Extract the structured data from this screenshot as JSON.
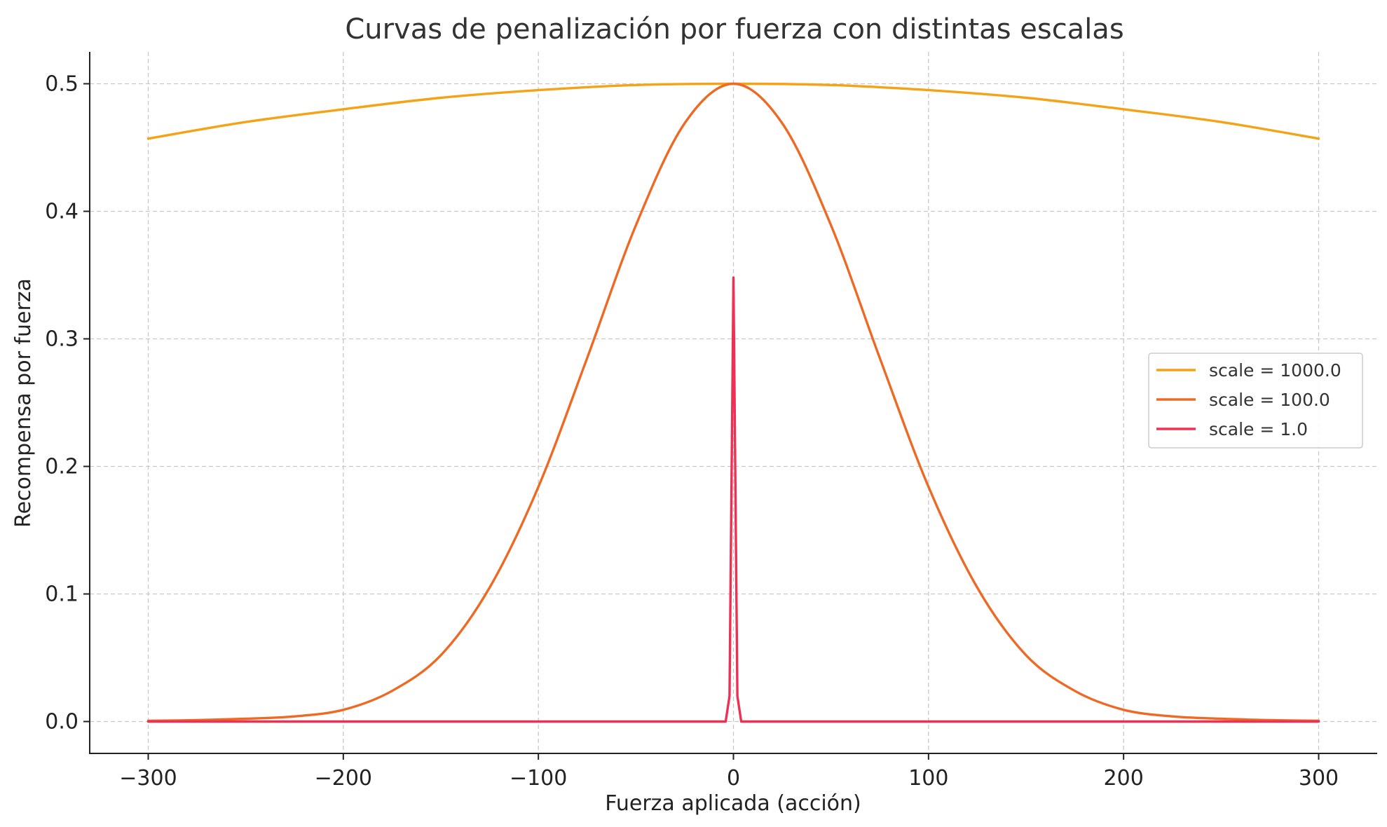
{
  "chart_data": {
    "type": "line",
    "title": "Curvas de penalización por fuerza con distintas escalas",
    "xlabel": "Fuerza aplicada (acción)",
    "ylabel": "Recompensa por fuerza",
    "xlim": [
      -330,
      330
    ],
    "ylim": [
      -0.025,
      0.525
    ],
    "x_ticks": [
      -300,
      -200,
      -100,
      0,
      100,
      200,
      300
    ],
    "x_tick_labels": [
      "−300",
      "−200",
      "−100",
      "0",
      "100",
      "200",
      "300"
    ],
    "y_ticks": [
      0.0,
      0.1,
      0.2,
      0.3,
      0.4,
      0.5
    ],
    "y_tick_labels": [
      "0.0",
      "0.1",
      "0.2",
      "0.3",
      "0.4",
      "0.5"
    ],
    "grid": true,
    "legend_position": "center-right",
    "series": [
      {
        "name": "scale = 1000.0",
        "color": "#F5A316",
        "x": [
          -300,
          -250,
          -200,
          -150,
          -100,
          -50,
          0,
          50,
          100,
          150,
          200,
          250,
          300
        ],
        "y": [
          0.457,
          0.47,
          0.48,
          0.489,
          0.495,
          0.499,
          0.5,
          0.499,
          0.495,
          0.489,
          0.48,
          0.47,
          0.457
        ]
      },
      {
        "name": "scale = 100.0",
        "color": "#EE6A24",
        "x": [
          -300,
          -275,
          -250,
          -225,
          -200,
          -175,
          -150,
          -125,
          -100,
          -75,
          -50,
          -25,
          0,
          25,
          50,
          75,
          100,
          125,
          150,
          175,
          200,
          225,
          250,
          275,
          300
        ],
        "y": [
          0.0006,
          0.0011,
          0.0022,
          0.004,
          0.0092,
          0.024,
          0.052,
          0.105,
          0.184,
          0.285,
          0.389,
          0.469,
          0.5,
          0.469,
          0.389,
          0.285,
          0.184,
          0.105,
          0.052,
          0.024,
          0.0092,
          0.004,
          0.0022,
          0.0011,
          0.0006
        ]
      },
      {
        "name": "scale = 1.0",
        "color": "#EE3055",
        "x": [
          -300,
          -4,
          -2,
          0,
          2,
          4,
          300
        ],
        "y": [
          0.0,
          0.0,
          0.02,
          0.348,
          0.02,
          0.0,
          0.0
        ]
      }
    ]
  }
}
